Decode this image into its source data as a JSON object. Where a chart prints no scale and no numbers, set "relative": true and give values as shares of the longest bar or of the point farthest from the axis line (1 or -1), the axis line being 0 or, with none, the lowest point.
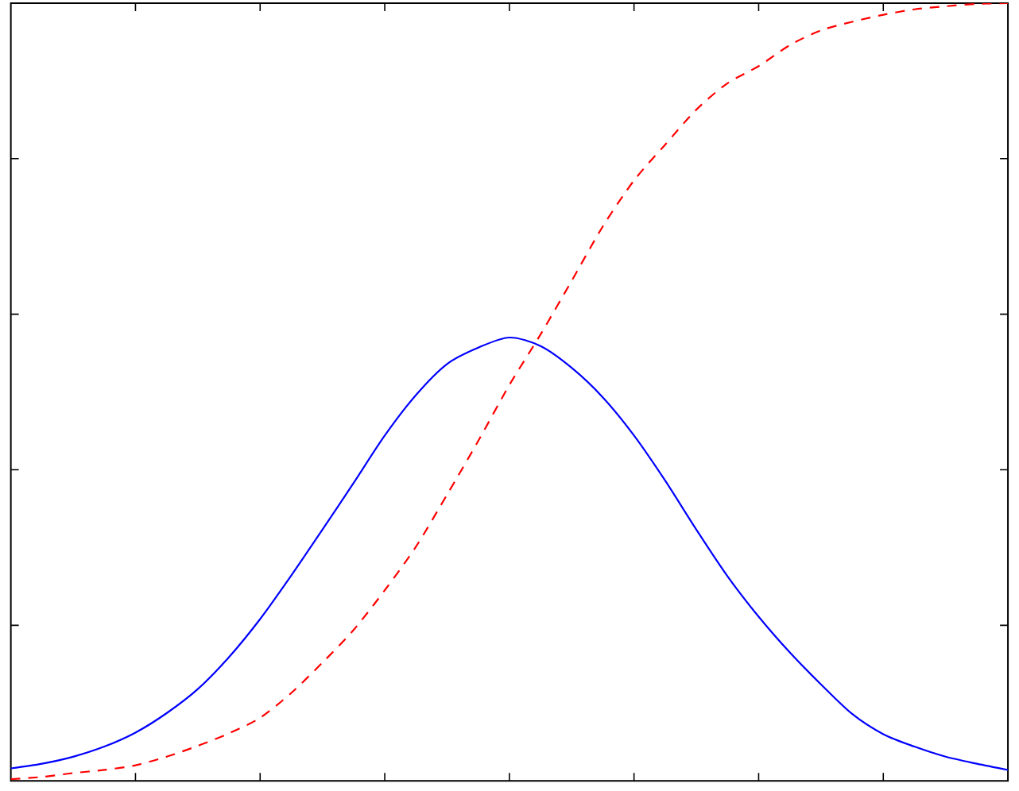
{
  "chart_data": {
    "type": "line",
    "relative": true,
    "categories": [
      null,
      null,
      null,
      null,
      null,
      null,
      null,
      null,
      null,
      null,
      null,
      null,
      null,
      null,
      null,
      null,
      null,
      null,
      null,
      null,
      null,
      null,
      null,
      null,
      null,
      null,
      null,
      null,
      null,
      null,
      null,
      null,
      null
    ],
    "series": [
      {
        "color": "#0000ff",
        "line_style": "solid",
        "values": [
          0.016,
          0.022,
          0.031,
          0.044,
          0.062,
          0.087,
          0.118,
          0.159,
          0.208,
          0.264,
          0.323,
          0.383,
          0.444,
          0.496,
          0.536,
          0.557,
          0.57,
          0.559,
          0.531,
          0.493,
          0.444,
          0.386,
          0.323,
          0.263,
          0.211,
          0.165,
          0.124,
          0.086,
          0.06,
          0.044,
          0.031,
          0.022,
          0.014
        ]
      },
      {
        "color": "#ff0000",
        "line_style": "dashed",
        "values": [
          0.002,
          0.005,
          0.01,
          0.014,
          0.02,
          0.031,
          0.045,
          0.061,
          0.081,
          0.113,
          0.152,
          0.194,
          0.245,
          0.301,
          0.368,
          0.437,
          0.509,
          0.574,
          0.643,
          0.713,
          0.772,
          0.818,
          0.863,
          0.897,
          0.919,
          0.946,
          0.965,
          0.976,
          0.985,
          0.992,
          0.996,
          0.999,
          1.0
        ]
      }
    ]
  }
}
